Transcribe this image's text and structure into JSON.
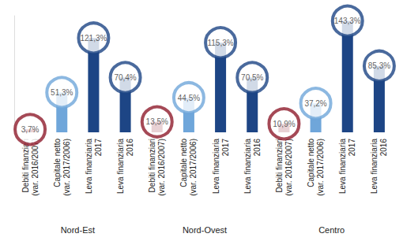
{
  "chart_data": {
    "type": "bar",
    "categories": [
      "Debiti finanziari\n(var. 2016/2007)",
      "Capitale netto\n(var. 2017/2006)",
      "Leva finanziaria\n2017",
      "Leva finanziaria\n2016",
      "Debiti finanziari\n(var. 2016/2007)",
      "Capitale netto\n(var. 2017/2006)",
      "Leva finanziaria\n2017",
      "Leva finanziaria\n2016",
      "Debiti finanziari\n(var. 2016/2007)",
      "Capitale netto\n(var. 2017/2006)",
      "Leva finanziaria\n2017",
      "Leva finanziaria\n2016"
    ],
    "groups": [
      "Nord-Est",
      "Nord-Ovest",
      "Centro"
    ],
    "values": [
      3.7,
      51.3,
      121.3,
      70.4,
      13.5,
      44.5,
      115.3,
      70.5,
      10.9,
      37.2,
      143.3,
      85.3
    ],
    "value_labels": [
      "3,7%",
      "51,3%",
      "121,3%",
      "70,4%",
      "13,5%",
      "44,5%",
      "115,3%",
      "70,5%",
      "10,9%",
      "37,2%",
      "143,3%",
      "85,3%"
    ],
    "colors": [
      "#8e1b2c",
      "#6fa6da",
      "#1d4585",
      "#1d4585",
      "#8e1b2c",
      "#6fa6da",
      "#1d4585",
      "#1d4585",
      "#8e1b2c",
      "#6fa6da",
      "#1d4585",
      "#1d4585"
    ],
    "ylim": [
      0,
      150
    ],
    "data_labels": true,
    "tick_labels": "x",
    "marker": "circle"
  }
}
